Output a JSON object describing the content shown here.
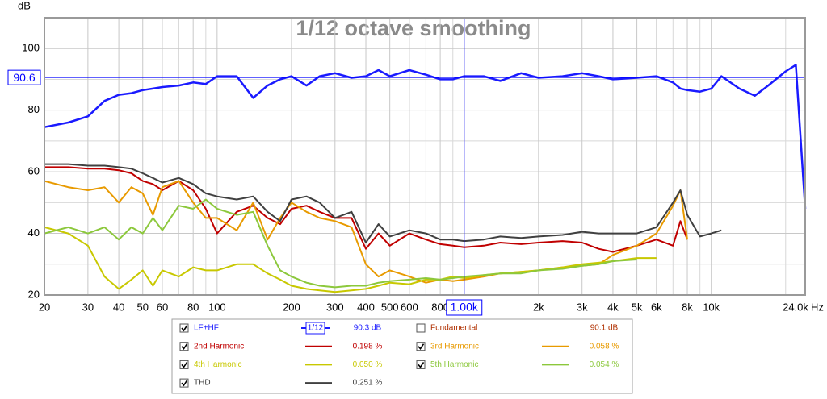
{
  "chart_data": {
    "type": "line",
    "title": "1/12 octave smoothing",
    "y_unit": "dB",
    "x_unit": "Hz",
    "log_x": true,
    "grid": true,
    "xlim": [
      20,
      24000
    ],
    "ylim": [
      20,
      110
    ],
    "yticks": [
      20,
      40,
      60,
      80,
      100
    ],
    "y_minor_ticks": [
      30,
      50,
      70,
      90
    ],
    "xticks": [
      20,
      30,
      40,
      50,
      60,
      80,
      100,
      200,
      300,
      400,
      500,
      600,
      800,
      {
        "value": 2000,
        "label": "2k"
      },
      {
        "value": 3000,
        "label": "3k"
      },
      {
        "value": 4000,
        "label": "4k"
      },
      {
        "value": 5000,
        "label": "5k"
      },
      {
        "value": 6000,
        "label": "6k"
      },
      {
        "value": 8000,
        "label": "8k"
      },
      {
        "value": 10000,
        "label": "10k"
      },
      {
        "value": 24000,
        "label": "24.0k"
      }
    ],
    "x_minor_ticks": [
      70,
      90,
      700,
      900,
      1000,
      7000,
      9000,
      20000
    ],
    "cursor": {
      "x": {
        "value": 1000,
        "label": "1.00k"
      },
      "y": {
        "value": 90.6,
        "label": "90.6"
      }
    },
    "x": [
      20,
      25,
      30,
      35,
      40,
      45,
      50,
      55,
      60,
      70,
      80,
      90,
      100,
      120,
      140,
      160,
      180,
      200,
      230,
      260,
      300,
      350,
      400,
      450,
      500,
      600,
      700,
      800,
      900,
      1000,
      1200,
      1400,
      1700,
      2000,
      2500,
      3000,
      3500,
      4000,
      5000,
      6000,
      7000,
      7500,
      8000,
      9000,
      10000,
      11000,
      13000,
      15000,
      17000,
      20000,
      22000,
      24000
    ],
    "series": [
      {
        "name": "LF+HF",
        "color": "#1a1aff",
        "checked": true,
        "smoothing": "1/12",
        "readout": "90.3 dB",
        "values": [
          74.5,
          76,
          78,
          83,
          85,
          85.5,
          86.5,
          87,
          87.5,
          88,
          89,
          88.5,
          91,
          91,
          84,
          88,
          90,
          91,
          88,
          91,
          92,
          90.5,
          91,
          93,
          91,
          93,
          91.5,
          90,
          90,
          91,
          91,
          89.5,
          92,
          90.5,
          91,
          92,
          91,
          90,
          90.5,
          91,
          89,
          87,
          86.5,
          86,
          87,
          91,
          87,
          84.7,
          88,
          92.6,
          94.7,
          48
        ]
      },
      {
        "name": "2nd Harmonic",
        "color": "#c00000",
        "checked": true,
        "readout": "0.198 %",
        "values": [
          61.5,
          61.5,
          61,
          61,
          60.5,
          59.5,
          57,
          56,
          54,
          57,
          54,
          48,
          40,
          47,
          49,
          45,
          43,
          48,
          49,
          47,
          45,
          45,
          35,
          40,
          36,
          40,
          38,
          36.5,
          36,
          35.5,
          36,
          37,
          36.5,
          37,
          37.5,
          37,
          35,
          34,
          36,
          38,
          36,
          44,
          38,
          null,
          null,
          null,
          null,
          null,
          null,
          null,
          null,
          null
        ]
      },
      {
        "name": "3rd Harmonic",
        "color": "#e89a00",
        "checked": true,
        "readout": "0.058 %",
        "values": [
          57,
          55,
          54,
          55,
          50,
          55,
          53,
          46,
          55,
          57,
          50,
          45,
          45,
          41,
          50,
          38,
          45,
          50,
          47,
          45,
          44,
          42,
          30,
          26,
          28,
          26,
          24,
          25,
          24.5,
          25,
          26,
          27,
          27.5,
          28,
          29,
          29.5,
          30,
          33,
          36,
          40,
          49,
          54,
          38,
          null,
          null,
          null,
          null,
          null,
          null,
          null,
          null,
          null
        ]
      },
      {
        "name": "4th Harmonic",
        "color": "#c8c800",
        "checked": true,
        "readout": "0.050 %",
        "values": [
          42,
          40,
          36,
          26,
          22,
          25,
          28,
          23,
          28,
          26,
          29,
          28,
          28,
          30,
          30,
          27,
          25,
          23,
          22,
          21.5,
          21,
          21.5,
          22,
          23,
          24,
          23.5,
          25,
          25,
          26,
          25.5,
          26.5,
          27,
          27.5,
          28,
          29,
          30,
          30.5,
          31,
          32,
          32,
          null,
          null,
          null,
          null,
          null,
          null,
          null,
          null,
          null,
          null,
          null,
          null
        ]
      },
      {
        "name": "5th Harmonic",
        "color": "#8cc83c",
        "checked": true,
        "readout": "0.054 %",
        "values": [
          40,
          42,
          40,
          42,
          38,
          42,
          40,
          45,
          41,
          49,
          48,
          51,
          48,
          46,
          47,
          36,
          28,
          26,
          24,
          23,
          22.5,
          23,
          23,
          24,
          24.5,
          25,
          25.5,
          25,
          25.5,
          26,
          26.5,
          27,
          27,
          28,
          28.5,
          29.5,
          30,
          31,
          31.5,
          null,
          null,
          null,
          null,
          null,
          null,
          null,
          null,
          null,
          null,
          null,
          null,
          null
        ]
      },
      {
        "name": "THD",
        "color": "#404040",
        "checked": true,
        "readout": "0.251 %",
        "values": [
          62.5,
          62.5,
          62,
          62,
          61.5,
          61,
          59.5,
          58,
          56.5,
          58,
          56,
          53,
          52,
          51,
          52,
          47,
          44,
          51,
          52,
          50,
          45,
          47,
          37,
          43,
          39,
          41,
          40,
          38,
          38,
          37.5,
          38,
          39,
          38.5,
          39,
          39.5,
          40.5,
          40,
          40,
          40,
          42,
          50,
          54,
          46,
          39,
          40,
          41,
          null,
          null,
          null,
          null,
          null,
          null
        ]
      }
    ],
    "unchecked_series": [
      {
        "name": "Fundamental",
        "color": "#b03000",
        "checked": false,
        "readout": "90.1 dB"
      }
    ]
  }
}
